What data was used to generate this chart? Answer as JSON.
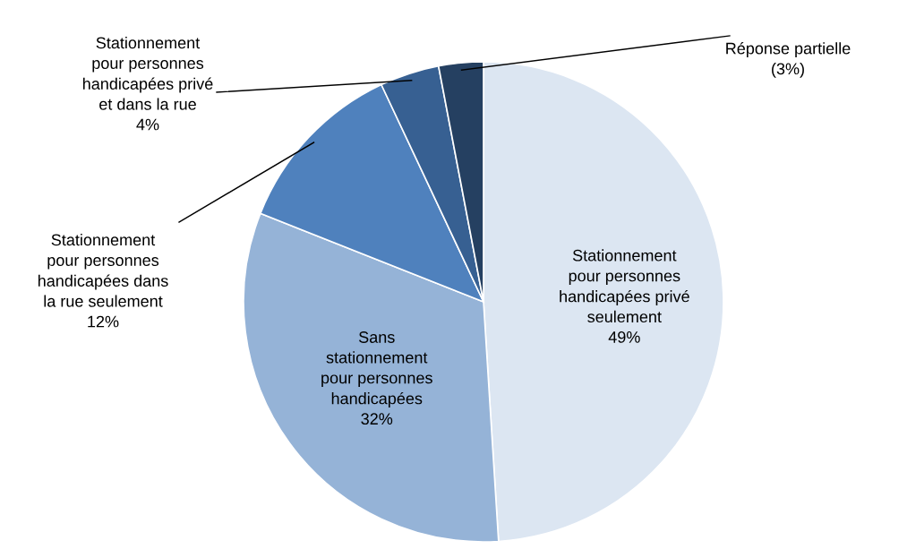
{
  "chart_data": {
    "type": "pie",
    "categories": [
      "Stationnement\npour personnes\nhandicapées privé\nseulement",
      "Sans\nstationnement\npour personnes\nhandicapées",
      "Stationnement\npour personnes\nhandicapées dans\nla rue seulement",
      "Stationnement\npour personnes\nhandicapées privé\net dans la rue",
      "Réponse partielle"
    ],
    "values": [
      49,
      32,
      12,
      4,
      3
    ],
    "value_labels": [
      "49%",
      "32%",
      "12%",
      "4%",
      "(3%)"
    ],
    "colors": [
      "#dce6f2",
      "#95b3d7",
      "#4f81bd",
      "#376092",
      "#254061"
    ]
  }
}
